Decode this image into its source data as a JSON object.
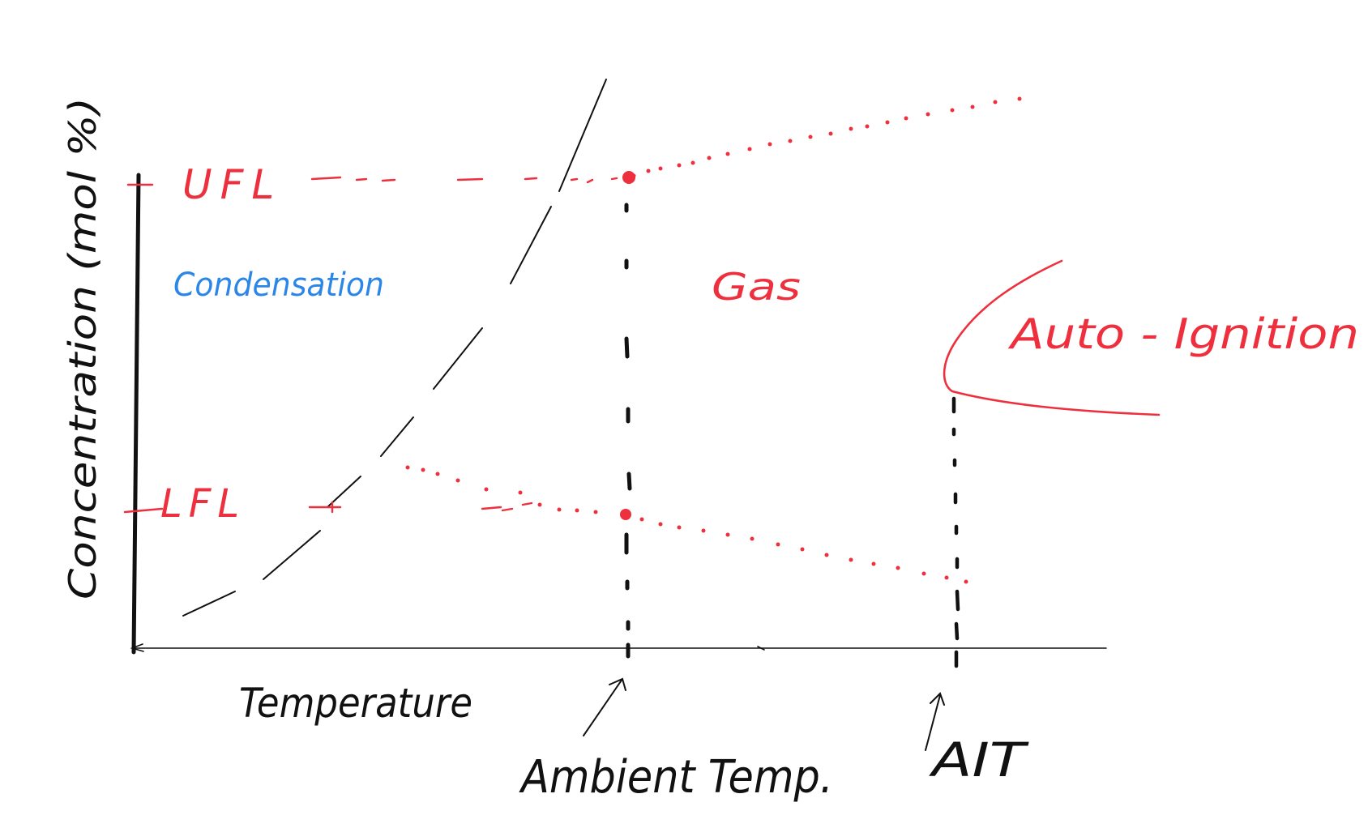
{
  "diagram": {
    "y_axis_label": "Concentration (mol %)",
    "x_axis_label": "Temperature",
    "labels": {
      "ufl": "UFL",
      "lfl": "LFL",
      "condensation": "Condensation",
      "gas": "Gas",
      "auto_ignition": "Auto - Ignition",
      "ambient_temp": "Ambient Temp.",
      "ait": "AIT"
    },
    "colors": {
      "ink": "#111111",
      "red": "#ee2f3d",
      "blue": "#2b86e8"
    }
  }
}
